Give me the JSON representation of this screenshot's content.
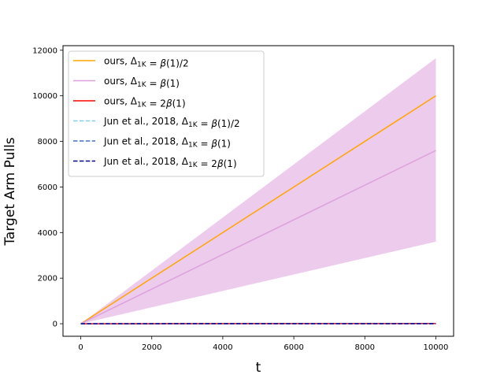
{
  "chart_data": {
    "type": "line",
    "xlabel": "t",
    "ylabel": "Target Arm Pulls",
    "xlim": [
      -500,
      10500
    ],
    "ylim": [
      -550,
      12200
    ],
    "xticks": [
      0,
      2000,
      4000,
      6000,
      8000,
      10000
    ],
    "yticks": [
      0,
      2000,
      4000,
      6000,
      8000,
      10000,
      12000
    ],
    "grid": false,
    "legend_position": "top-left",
    "series": [
      {
        "name": "ours, Δ1K = β(1)/2",
        "legend_parts": [
          {
            "t": "ours, "
          },
          {
            "t": "Δ"
          },
          {
            "t": "1K",
            "sub": true
          },
          {
            "t": " = "
          },
          {
            "t": "β",
            "italic": true
          },
          {
            "t": "(1)/2"
          }
        ],
        "color": "#ffa500",
        "dash": "solid",
        "x": [
          0,
          10000
        ],
        "y": [
          0,
          10000
        ]
      },
      {
        "name": "ours, Δ1K = β(1)",
        "legend_parts": [
          {
            "t": "ours, "
          },
          {
            "t": "Δ"
          },
          {
            "t": "1K",
            "sub": true
          },
          {
            "t": " = "
          },
          {
            "t": "β",
            "italic": true
          },
          {
            "t": "(1)"
          }
        ],
        "color": "#dda0dd",
        "dash": "solid",
        "x": [
          0,
          10000
        ],
        "y": [
          0,
          7600
        ],
        "band_color": "#dda0dd",
        "band_lower": [
          0,
          3600
        ],
        "band_upper": [
          0,
          11650
        ]
      },
      {
        "name": "ours, Δ1K = 2β(1)",
        "legend_parts": [
          {
            "t": "ours, "
          },
          {
            "t": "Δ"
          },
          {
            "t": "1K",
            "sub": true
          },
          {
            "t": " = 2"
          },
          {
            "t": "β",
            "italic": true
          },
          {
            "t": "(1)"
          }
        ],
        "color": "#ff0000",
        "dash": "solid",
        "x": [
          0,
          10000
        ],
        "y": [
          0,
          10
        ]
      },
      {
        "name": "Jun et al., 2018, Δ1K = β(1)/2",
        "legend_parts": [
          {
            "t": "Jun et al., 2018, "
          },
          {
            "t": "Δ"
          },
          {
            "t": "1K",
            "sub": true
          },
          {
            "t": " = "
          },
          {
            "t": "β",
            "italic": true
          },
          {
            "t": "(1)/2"
          }
        ],
        "color": "#87ceeb",
        "dash": "dashed",
        "x": [
          0,
          10000
        ],
        "y": [
          0,
          8
        ]
      },
      {
        "name": "Jun et al., 2018, Δ1K = β(1)",
        "legend_parts": [
          {
            "t": "Jun et al., 2018, "
          },
          {
            "t": "Δ"
          },
          {
            "t": "1K",
            "sub": true
          },
          {
            "t": " = "
          },
          {
            "t": "β",
            "italic": true
          },
          {
            "t": "(1)"
          }
        ],
        "color": "#4472c4",
        "dash": "dashed",
        "x": [
          0,
          10000
        ],
        "y": [
          0,
          5
        ]
      },
      {
        "name": "Jun et al., 2018, Δ1K = 2β(1)",
        "legend_parts": [
          {
            "t": "Jun et al., 2018, "
          },
          {
            "t": "Δ"
          },
          {
            "t": "1K",
            "sub": true
          },
          {
            "t": " = 2"
          },
          {
            "t": "β",
            "italic": true
          },
          {
            "t": "(1)"
          }
        ],
        "color": "#00008b",
        "dash": "dashed",
        "x": [
          0,
          10000
        ],
        "y": [
          0,
          3
        ]
      }
    ]
  }
}
